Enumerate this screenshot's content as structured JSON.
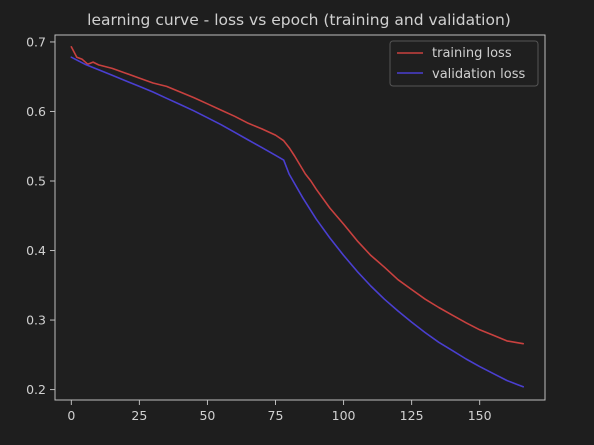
{
  "chart_data": {
    "type": "line",
    "title": "learning curve - loss vs epoch (training and validation)",
    "xlabel": "",
    "ylabel": "",
    "xlim": [
      -6,
      174
    ],
    "ylim": [
      0.185,
      0.71
    ],
    "xticks": [
      0,
      25,
      50,
      75,
      100,
      125,
      150
    ],
    "yticks": [
      0.2,
      0.3,
      0.4,
      0.5,
      0.6,
      0.7
    ],
    "grid": false,
    "legend": "top-right",
    "series": [
      {
        "name": "training loss",
        "color": "#c8413f",
        "x": [
          0,
          2,
          4,
          6,
          8,
          10,
          15,
          20,
          25,
          30,
          35,
          40,
          45,
          50,
          55,
          60,
          65,
          70,
          75,
          78,
          80,
          82,
          84,
          86,
          88,
          90,
          95,
          100,
          105,
          110,
          115,
          120,
          125,
          130,
          135,
          140,
          145,
          150,
          155,
          160,
          163,
          166
        ],
        "y": [
          0.693,
          0.678,
          0.675,
          0.668,
          0.671,
          0.667,
          0.662,
          0.655,
          0.648,
          0.641,
          0.636,
          0.628,
          0.62,
          0.611,
          0.602,
          0.593,
          0.583,
          0.575,
          0.566,
          0.558,
          0.548,
          0.536,
          0.523,
          0.51,
          0.5,
          0.488,
          0.461,
          0.438,
          0.414,
          0.393,
          0.376,
          0.358,
          0.344,
          0.33,
          0.318,
          0.307,
          0.296,
          0.286,
          0.278,
          0.27,
          0.268,
          0.266
        ]
      },
      {
        "name": "validation loss",
        "color": "#4a3fd0",
        "x": [
          0,
          5,
          10,
          15,
          20,
          25,
          30,
          35,
          40,
          45,
          50,
          55,
          60,
          65,
          70,
          75,
          78,
          80,
          85,
          90,
          95,
          100,
          105,
          110,
          115,
          120,
          125,
          130,
          135,
          140,
          145,
          150,
          155,
          160,
          164,
          166
        ],
        "y": [
          0.678,
          0.668,
          0.66,
          0.652,
          0.644,
          0.636,
          0.628,
          0.619,
          0.61,
          0.601,
          0.591,
          0.581,
          0.57,
          0.559,
          0.548,
          0.537,
          0.53,
          0.51,
          0.476,
          0.445,
          0.418,
          0.393,
          0.37,
          0.349,
          0.33,
          0.313,
          0.297,
          0.282,
          0.268,
          0.256,
          0.244,
          0.233,
          0.223,
          0.213,
          0.207,
          0.204
        ]
      }
    ]
  }
}
